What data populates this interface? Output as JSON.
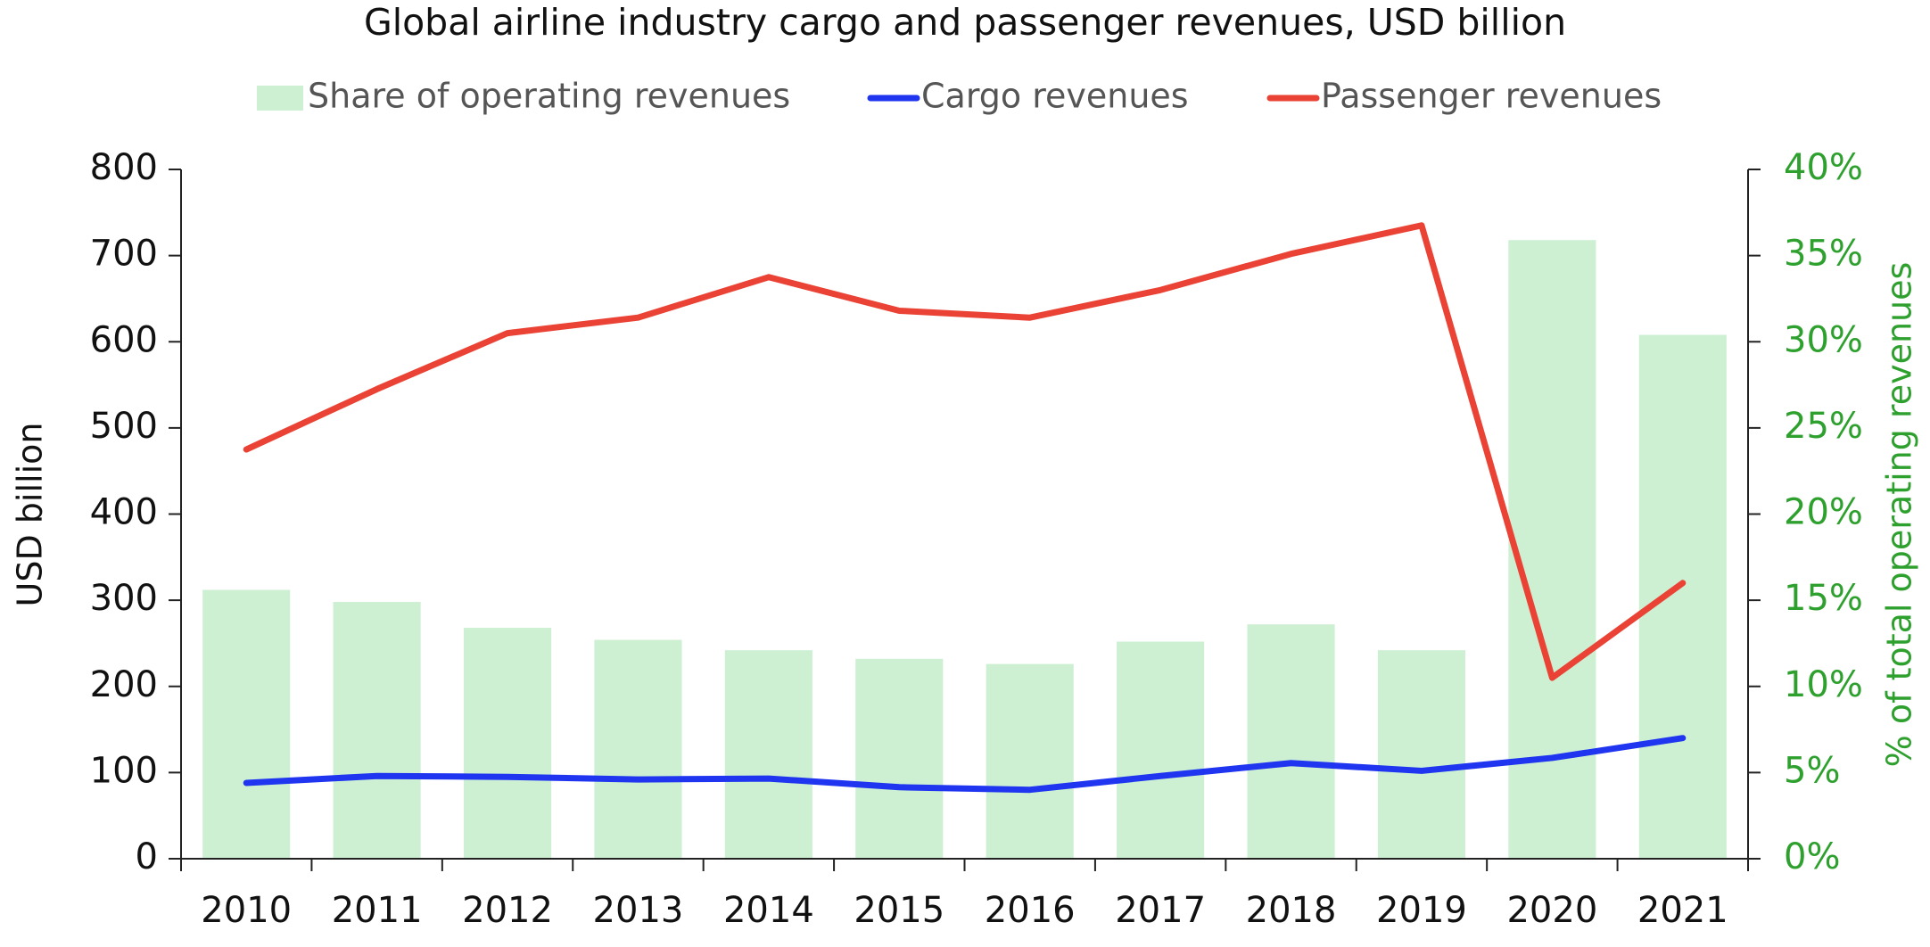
{
  "chart_data": {
    "type": "bar-line",
    "title": "Global airline industry cargo and passenger revenues, USD billion",
    "y_label": "USD billion",
    "y2_label": "% of total operating revenues",
    "categories": [
      "2010",
      "2011",
      "2012",
      "2013",
      "2014",
      "2015",
      "2016",
      "2017",
      "2018",
      "2019",
      "2020",
      "2021"
    ],
    "series": [
      {
        "name": "Share of operating revenues",
        "type": "bar",
        "axis": "y2",
        "color": "#cdf0d3",
        "values": [
          15.6,
          14.9,
          13.4,
          12.7,
          12.1,
          11.6,
          11.3,
          12.6,
          13.6,
          12.1,
          35.9,
          30.4
        ]
      },
      {
        "name": "Cargo revenues",
        "type": "line",
        "color": "#1f35f0",
        "values": [
          88,
          96,
          95,
          92,
          93,
          83,
          80,
          96,
          111,
          102,
          117,
          140
        ]
      },
      {
        "name": "Passenger revenues",
        "type": "line",
        "color": "#ea4335",
        "values": [
          475,
          545,
          610,
          628,
          675,
          636,
          628,
          660,
          702,
          735,
          210,
          320
        ]
      }
    ],
    "ylim": [
      0,
      800
    ],
    "yticks": [
      0,
      100,
      200,
      300,
      400,
      500,
      600,
      700,
      800
    ],
    "y2lim": [
      0,
      40
    ],
    "y2ticks": [
      {
        "value": 0,
        "label": "0%"
      },
      {
        "value": 5,
        "label": "5%"
      },
      {
        "value": 10,
        "label": "10%"
      },
      {
        "value": 15,
        "label": "15%"
      },
      {
        "value": 20,
        "label": "20%"
      },
      {
        "value": 25,
        "label": "25%"
      },
      {
        "value": 30,
        "label": "30%"
      },
      {
        "value": 35,
        "label": "35%"
      },
      {
        "value": 40,
        "label": "40%"
      }
    ],
    "legend": "top"
  }
}
